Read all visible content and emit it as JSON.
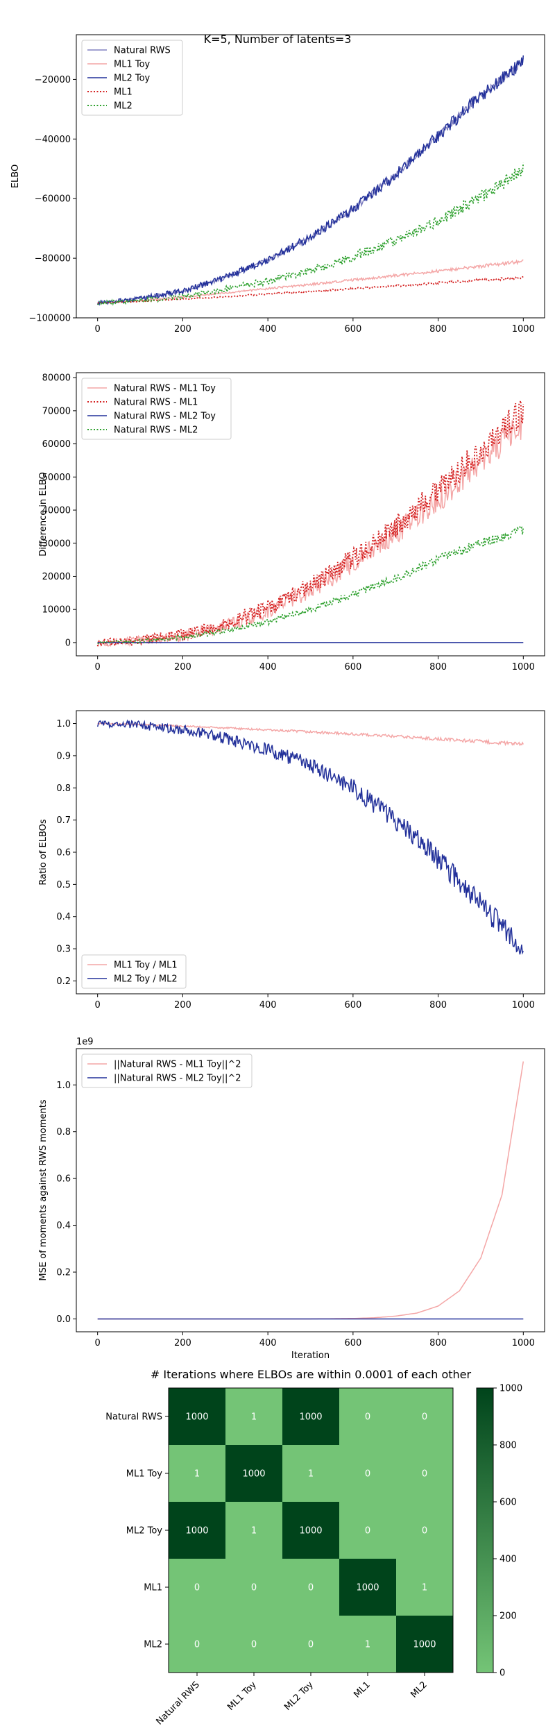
{
  "figure": {
    "suptitle": "K=5, Number of latents=3"
  },
  "chart_data": [
    {
      "type": "line",
      "ylabel": "ELBO",
      "xlim": [
        -50,
        1050
      ],
      "ylim": [
        -100000,
        -5000
      ],
      "xticks": [
        0,
        200,
        400,
        600,
        800,
        1000
      ],
      "yticks": [
        -100000,
        -80000,
        -60000,
        -40000,
        -20000
      ],
      "ytick_labels": [
        "−100000",
        "−80000",
        "−60000",
        "−40000",
        "−20000"
      ],
      "legend": "top-left",
      "x": [
        0,
        100,
        200,
        300,
        400,
        500,
        600,
        700,
        800,
        900,
        1000
      ],
      "series": [
        {
          "name": "Natural RWS",
          "color": "#8080c0",
          "style": "solid",
          "noise": 1500,
          "values": [
            -95000,
            -93500,
            -91000,
            -86500,
            -80500,
            -73000,
            -63500,
            -52000,
            -39000,
            -25500,
            -14000
          ]
        },
        {
          "name": "ML1 Toy",
          "color": "#f4a6a6",
          "style": "solid",
          "noise": 600,
          "values": [
            -95000,
            -94200,
            -93000,
            -91600,
            -90200,
            -88800,
            -87300,
            -85800,
            -84300,
            -82700,
            -81000
          ]
        },
        {
          "name": "ML2 Toy",
          "color": "#22309a",
          "style": "solid",
          "noise": 2400,
          "values": [
            -95000,
            -93500,
            -91000,
            -86500,
            -80500,
            -73000,
            -63500,
            -52000,
            -39000,
            -25500,
            -14000
          ]
        },
        {
          "name": "ML1",
          "color": "#d42020",
          "style": "dotted",
          "noise": 400,
          "values": [
            -95000,
            -94500,
            -93700,
            -92900,
            -92000,
            -91100,
            -90200,
            -89300,
            -88300,
            -87300,
            -86500
          ]
        },
        {
          "name": "ML2",
          "color": "#2ca02c",
          "style": "dotted",
          "noise": 2200,
          "values": [
            -95000,
            -94200,
            -92800,
            -90500,
            -87500,
            -84000,
            -79500,
            -74000,
            -67500,
            -59500,
            -50000
          ]
        }
      ]
    },
    {
      "type": "line",
      "ylabel": "Difference in ELBO",
      "xlim": [
        -50,
        1050
      ],
      "ylim": [
        -4000,
        81500
      ],
      "xticks": [
        0,
        200,
        400,
        600,
        800,
        1000
      ],
      "yticks": [
        0,
        10000,
        20000,
        30000,
        40000,
        50000,
        60000,
        70000,
        80000
      ],
      "ytick_labels": [
        "0",
        "10000",
        "20000",
        "30000",
        "40000",
        "50000",
        "60000",
        "70000",
        "80000"
      ],
      "legend": "top-left",
      "x": [
        0,
        100,
        200,
        300,
        400,
        500,
        600,
        700,
        800,
        900,
        1000
      ],
      "series": [
        {
          "name": "Natural RWS - ML1 Toy",
          "color": "#f4a6a6",
          "style": "solid",
          "noise": 4500,
          "values": [
            0,
            600,
            2000,
            5000,
            9800,
            16000,
            24000,
            33000,
            43000,
            55000,
            66000
          ]
        },
        {
          "name": "Natural RWS - ML1",
          "color": "#d42020",
          "style": "dotted",
          "noise": 4500,
          "values": [
            0,
            700,
            2300,
            5600,
            10500,
            17000,
            25500,
            35000,
            46000,
            58000,
            70000
          ]
        },
        {
          "name": "Natural RWS - ML2 Toy",
          "color": "#22309a",
          "style": "solid",
          "noise": 0,
          "values": [
            0,
            0,
            0,
            0,
            0,
            0,
            0,
            0,
            0,
            0,
            0
          ]
        },
        {
          "name": "Natural RWS - ML2",
          "color": "#2ca02c",
          "style": "dotted",
          "noise": 1600,
          "values": [
            0,
            500,
            1500,
            3500,
            6300,
            10000,
            14500,
            19500,
            25000,
            30000,
            34000
          ]
        }
      ]
    },
    {
      "type": "line",
      "ylabel": "Ratio of ELBOs",
      "xlim": [
        -50,
        1050
      ],
      "ylim": [
        0.16,
        1.04
      ],
      "xticks": [
        0,
        200,
        400,
        600,
        800,
        1000
      ],
      "yticks": [
        0.2,
        0.3,
        0.4,
        0.5,
        0.6,
        0.7,
        0.8,
        0.9,
        1.0
      ],
      "ytick_labels": [
        "0.2",
        "0.3",
        "0.4",
        "0.5",
        "0.6",
        "0.7",
        "0.8",
        "0.9",
        "1.0"
      ],
      "legend": "bottom-left",
      "x": [
        0,
        100,
        200,
        300,
        400,
        500,
        600,
        700,
        800,
        900,
        1000
      ],
      "series": [
        {
          "name": "ML1 Toy / ML1",
          "color": "#f4a6a6",
          "style": "solid",
          "noise": 0.006,
          "values": [
            1.0,
            0.997,
            0.992,
            0.986,
            0.98,
            0.974,
            0.967,
            0.96,
            0.952,
            0.944,
            0.935
          ]
        },
        {
          "name": "ML2 Toy / ML2",
          "color": "#22309a",
          "style": "solid",
          "noise": 0.04,
          "values": [
            1.0,
            0.995,
            0.98,
            0.955,
            0.92,
            0.87,
            0.8,
            0.7,
            0.58,
            0.44,
            0.29
          ]
        }
      ]
    },
    {
      "type": "line",
      "ylabel": "MSE of moments against RWS moments",
      "xlabel": "Iteration",
      "offset_label": "1e9",
      "xlim": [
        -50,
        1050
      ],
      "ylim": [
        -0.055,
        1.155
      ],
      "xticks": [
        0,
        200,
        400,
        600,
        800,
        1000
      ],
      "yticks": [
        0.0,
        0.2,
        0.4,
        0.6,
        0.8,
        1.0
      ],
      "ytick_labels": [
        "0.0",
        "0.2",
        "0.4",
        "0.6",
        "0.8",
        "1.0"
      ],
      "legend": "top-left",
      "x": [
        0,
        500,
        600,
        650,
        700,
        750,
        800,
        850,
        900,
        950,
        1000
      ],
      "series": [
        {
          "name": "||Natural RWS - ML1 Toy||^2",
          "color": "#f4a6a6",
          "style": "solid",
          "noise": 0,
          "values": [
            0.0,
            0.0,
            0.002,
            0.005,
            0.012,
            0.025,
            0.055,
            0.12,
            0.26,
            0.53,
            1.1
          ]
        },
        {
          "name": "||Natural RWS - ML2 Toy||^2",
          "color": "#22309a",
          "style": "solid",
          "noise": 0,
          "values": [
            0,
            0,
            0,
            0,
            0,
            0,
            0,
            0,
            0,
            0,
            0
          ]
        }
      ]
    },
    {
      "type": "heatmap",
      "title": "# Iterations where ELBOs are within 0.0001 of each other",
      "labels": [
        "Natural RWS",
        "ML1 Toy",
        "ML2 Toy",
        "ML1",
        "ML2"
      ],
      "matrix": [
        [
          1000,
          1,
          1000,
          0,
          0
        ],
        [
          1,
          1000,
          1,
          0,
          0
        ],
        [
          1000,
          1,
          1000,
          0,
          0
        ],
        [
          0,
          0,
          0,
          1000,
          1
        ],
        [
          0,
          0,
          0,
          1,
          1000
        ]
      ],
      "vmin": 0,
      "vmax": 1000,
      "colorbar_ticks": [
        0,
        200,
        400,
        600,
        800,
        1000
      ],
      "color_low": "#74c476",
      "color_high": "#00441b"
    }
  ]
}
